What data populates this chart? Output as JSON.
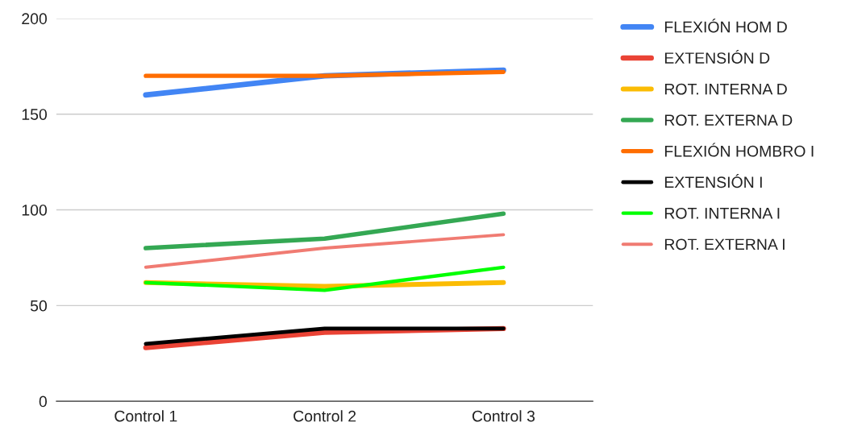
{
  "chart_data": {
    "type": "line",
    "categories": [
      "Control 1",
      "Control 2",
      "Control 3"
    ],
    "series": [
      {
        "name": "FLEXIÓN HOM D",
        "color": "#4285f4",
        "values": [
          160,
          170,
          173
        ]
      },
      {
        "name": "EXTENSIÓN D",
        "color": "#ea4335",
        "values": [
          28,
          36,
          38
        ]
      },
      {
        "name": "ROT. INTERNA D",
        "color": "#fbbc04",
        "values": [
          62,
          60,
          62
        ]
      },
      {
        "name": "ROT. EXTERNA D",
        "color": "#34a853",
        "values": [
          80,
          85,
          98
        ]
      },
      {
        "name": "FLEXIÓN HOMBRO I",
        "color": "#ff6d01",
        "values": [
          170,
          170,
          172
        ]
      },
      {
        "name": "EXTENSIÓN I",
        "color": "#000000",
        "values": [
          30,
          38,
          38
        ]
      },
      {
        "name": "ROT. INTERNA I",
        "color": "#00ff00",
        "values": [
          62,
          58,
          70
        ]
      },
      {
        "name": "ROT. EXTERNA I",
        "color": "#f07b72",
        "values": [
          70,
          80,
          87
        ]
      }
    ],
    "ylim": [
      0,
      200
    ],
    "yticks": [
      0,
      50,
      100,
      150,
      200
    ],
    "grid": "y",
    "legend": "right"
  }
}
